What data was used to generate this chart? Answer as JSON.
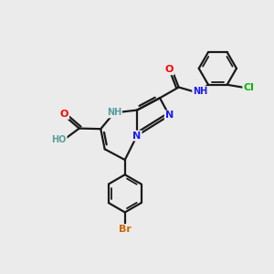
{
  "bg_color": "#ebebeb",
  "bond_color": "#1a1a1a",
  "atom_colors": {
    "N": "#1a1aff",
    "O": "#ff0000",
    "Br": "#cc6600",
    "Cl": "#00bb00",
    "NH_ring": "#5a9ea0",
    "NH_amide": "#1a1aff",
    "C": "#1a1a1a"
  },
  "lw": 1.6,
  "fs": 8.0,
  "fs_small": 7.0
}
